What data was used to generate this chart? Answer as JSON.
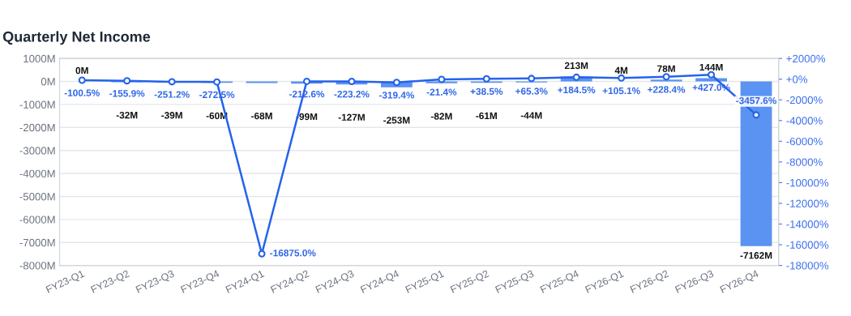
{
  "chart_data": {
    "type": "bar",
    "title": "Quarterly Net Income",
    "categories": [
      "FY23-Q1",
      "FY23-Q2",
      "FY23-Q3",
      "FY23-Q4",
      "FY24-Q1",
      "FY24-Q2",
      "FY24-Q3",
      "FY24-Q4",
      "FY25-Q1",
      "FY25-Q2",
      "FY25-Q3",
      "FY25-Q4",
      "FY26-Q1",
      "FY26-Q2",
      "FY26-Q3",
      "FY26-Q4"
    ],
    "series": [
      {
        "color": "#5b93f2",
        "values": [
          0,
          -32,
          -39,
          -60,
          -68,
          -99,
          -127,
          -253,
          -82,
          -61,
          -44,
          213,
          4,
          78,
          144,
          -7162
        ],
        "value_labels": [
          "0M",
          "-32M",
          "-39M",
          "-60M",
          "-68M",
          "-99M",
          "-127M",
          "-253M",
          "-82M",
          "-61M",
          "-44M",
          "213M",
          "4M",
          "78M",
          "144M",
          "-7162M"
        ]
      },
      {
        "type": "line",
        "axis": "y2",
        "color": "#2563eb",
        "marker": "circle",
        "line_style": "solid",
        "values": [
          -100.5,
          -155.9,
          -251.2,
          -272.5,
          -16875.0,
          -212.6,
          -223.2,
          -319.4,
          -21.4,
          38.5,
          65.3,
          184.5,
          105.1,
          228.4,
          427.0,
          -3457.6
        ],
        "value_labels": [
          "-100.5%",
          "-155.9%",
          "-251.2%",
          "-272.5%",
          "-16875.0%",
          "-212.6%",
          "-223.2%",
          "-319.4%",
          "-21.4%",
          "+38.5%",
          "+65.3%",
          "+184.5%",
          "+105.1%",
          "+228.4%",
          "+427.0%",
          "-3457.6%"
        ]
      }
    ],
    "ylim": [
      -8000,
      1000
    ],
    "yticks": [
      {
        "value": -8000,
        "label": "-8000M"
      },
      {
        "value": -7000,
        "label": "-7000M"
      },
      {
        "value": -6000,
        "label": "-6000M"
      },
      {
        "value": -5000,
        "label": "-5000M"
      },
      {
        "value": -4000,
        "label": "-4000M"
      },
      {
        "value": -3000,
        "label": "-3000M"
      },
      {
        "value": -2000,
        "label": "-2000M"
      },
      {
        "value": -1000,
        "label": "-1000M"
      },
      {
        "value": 0,
        "label": "0M"
      },
      {
        "value": 1000,
        "label": "1000M"
      }
    ],
    "y2lim": [
      -18000,
      2000
    ],
    "y2ticks": [
      {
        "value": -18000,
        "label": "-18000%"
      },
      {
        "value": -16000,
        "label": "-16000%"
      },
      {
        "value": -14000,
        "label": "-14000%"
      },
      {
        "value": -12000,
        "label": "-12000%"
      },
      {
        "value": -10000,
        "label": "-10000%"
      },
      {
        "value": -8000,
        "label": "-8000%"
      },
      {
        "value": -6000,
        "label": "-6000%"
      },
      {
        "value": -4000,
        "label": "-4000%"
      },
      {
        "value": -2000,
        "label": "-2000%"
      },
      {
        "value": 0,
        "label": "+0%"
      },
      {
        "value": 2000,
        "label": "+2000%"
      }
    ],
    "grid": "y",
    "legend": false
  }
}
